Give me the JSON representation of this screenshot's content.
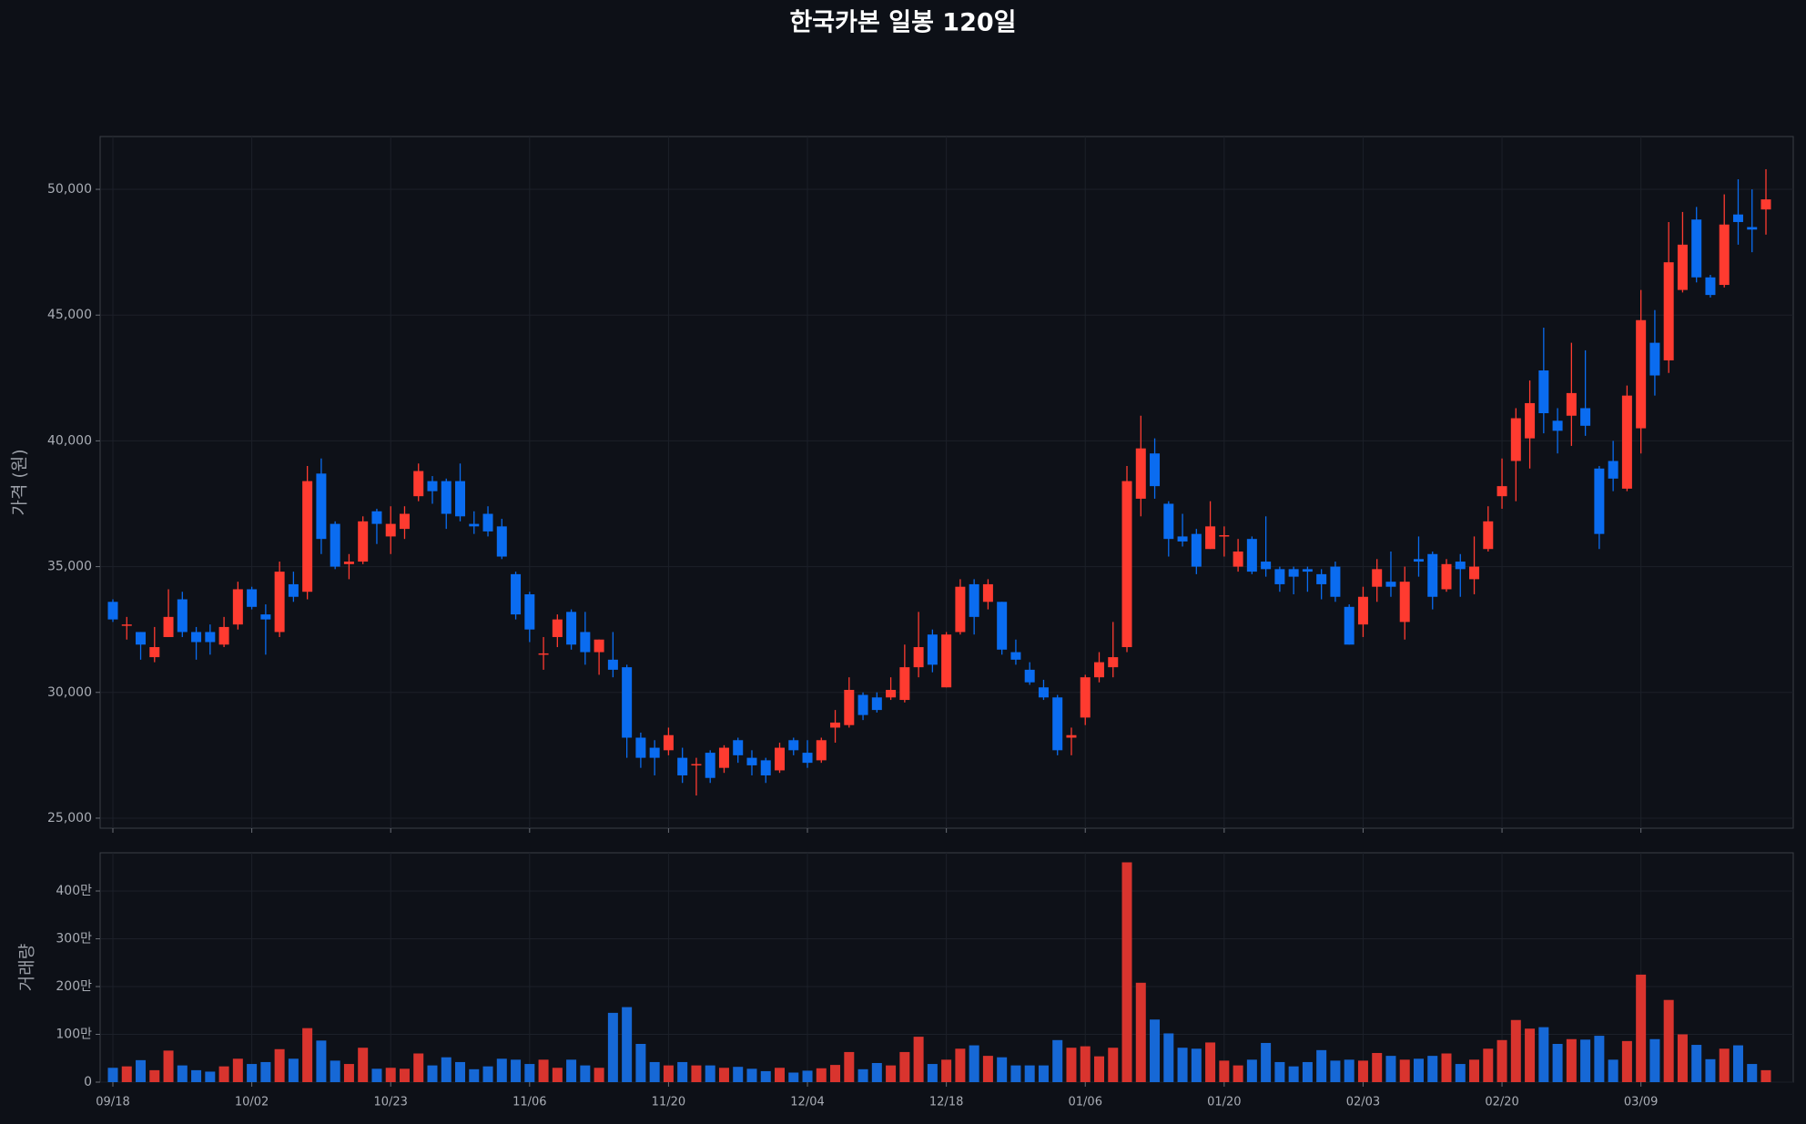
{
  "chart_data": [
    {
      "type": "candlestick",
      "title": "한국카본 일봉 120일",
      "ylabel": "가격 (원)",
      "up_color": "#ff3b30",
      "down_color": "#0a6cf0",
      "grid": true,
      "ylim": [
        24600,
        52100
      ],
      "yticks": [
        {
          "value": 25000,
          "label": "25,000"
        },
        {
          "value": 30000,
          "label": "30,000"
        },
        {
          "value": 35000,
          "label": "35,000"
        },
        {
          "value": 40000,
          "label": "40,000"
        },
        {
          "value": 45000,
          "label": "45,000"
        },
        {
          "value": 50000,
          "label": "50,000"
        }
      ],
      "open": [
        33600,
        32650,
        32400,
        31400,
        32200,
        33700,
        32400,
        32400,
        31900,
        32700,
        34100,
        33100,
        32400,
        34300,
        34000,
        38700,
        36700,
        35100,
        35200,
        37200,
        36200,
        36500,
        37800,
        38400,
        38400,
        38400,
        36700,
        37100,
        36600,
        34700,
        33900,
        31500,
        32200,
        33200,
        32400,
        31600,
        31300,
        31000,
        28200,
        27800,
        27700,
        27400,
        27100,
        27600,
        27000,
        28100,
        27400,
        27300,
        26900,
        28100,
        27600,
        27300,
        28600,
        28700,
        29900,
        29800,
        29800,
        29700,
        31000,
        32300,
        30200,
        32400,
        34300,
        33600,
        33600,
        31600,
        30900,
        30200,
        29800,
        28200,
        29000,
        30600,
        31000,
        31800,
        37700,
        39500,
        37500,
        36200,
        36300,
        35700,
        36200,
        35000,
        36100,
        35200,
        34900,
        34900,
        34900,
        34700,
        35000,
        33400,
        32700,
        34200,
        34400,
        32800,
        35300,
        35500,
        34100,
        35200,
        34500,
        35700,
        37800,
        39200,
        40100,
        42800,
        40800,
        41000,
        41300,
        38900,
        39200,
        38100,
        40500,
        43900,
        43200,
        46000,
        48800,
        46500,
        46200,
        49000,
        48500,
        49200
      ],
      "high": [
        33700,
        33000,
        32400,
        32600,
        34100,
        34000,
        32600,
        32700,
        33000,
        34400,
        34200,
        33500,
        35200,
        34800,
        39000,
        39300,
        36800,
        35500,
        37000,
        37300,
        37400,
        37400,
        39100,
        38600,
        38500,
        39100,
        37200,
        37400,
        36900,
        34800,
        34000,
        32200,
        33100,
        33300,
        33200,
        32100,
        32400,
        31100,
        28400,
        28100,
        28600,
        27800,
        27400,
        27700,
        27900,
        28200,
        27700,
        27400,
        28000,
        28200,
        28100,
        28200,
        29300,
        30600,
        30000,
        30000,
        30600,
        31900,
        33200,
        32500,
        32400,
        34500,
        34500,
        34500,
        33600,
        32100,
        31200,
        30500,
        29900,
        28600,
        30700,
        31600,
        32800,
        39000,
        41000,
        40100,
        37600,
        37100,
        36500,
        37600,
        36600,
        36100,
        36200,
        37000,
        35000,
        35000,
        35000,
        34900,
        35200,
        33500,
        34200,
        35300,
        35600,
        35000,
        36200,
        35600,
        35300,
        35500,
        36200,
        37400,
        39300,
        41300,
        42400,
        44500,
        41300,
        43900,
        43600,
        39000,
        40000,
        42200,
        46000,
        45200,
        48700,
        49100,
        49300,
        46600,
        49800,
        50400,
        50000,
        50800
      ],
      "low": [
        32800,
        32100,
        31300,
        31200,
        32200,
        32200,
        31300,
        31500,
        31800,
        32500,
        33300,
        31500,
        32200,
        33600,
        33700,
        35500,
        34900,
        34500,
        35100,
        35900,
        35500,
        36100,
        37600,
        37500,
        36500,
        36800,
        36300,
        36200,
        35300,
        32900,
        32000,
        30900,
        31800,
        31700,
        31100,
        30700,
        30600,
        27400,
        27000,
        26700,
        27500,
        26400,
        25900,
        26400,
        26800,
        27200,
        26700,
        26400,
        26800,
        27500,
        27000,
        27200,
        28000,
        28600,
        28900,
        29200,
        29700,
        29600,
        30600,
        30800,
        30200,
        32300,
        32300,
        33300,
        31500,
        31100,
        30300,
        29700,
        27500,
        27500,
        28700,
        30400,
        30600,
        31600,
        37000,
        37700,
        35400,
        35800,
        34700,
        35700,
        35400,
        34800,
        34700,
        34600,
        34000,
        33900,
        34000,
        33700,
        33600,
        31900,
        32200,
        33600,
        33800,
        32100,
        34600,
        33300,
        34000,
        33800,
        33900,
        35600,
        37300,
        37600,
        38900,
        40300,
        39500,
        39800,
        40200,
        35700,
        38000,
        38000,
        39500,
        41800,
        42700,
        45900,
        46300,
        45700,
        46100,
        47800,
        47500,
        48200
      ],
      "close": [
        32900,
        32700,
        31900,
        31800,
        33000,
        32400,
        32000,
        32000,
        32600,
        34100,
        33400,
        32900,
        34800,
        33800,
        38400,
        36100,
        35000,
        35200,
        36800,
        36700,
        36700,
        37100,
        38800,
        38000,
        37100,
        37000,
        36600,
        36400,
        35400,
        33100,
        32500,
        31550,
        32900,
        31900,
        31600,
        32100,
        30900,
        28200,
        27400,
        27400,
        28300,
        26700,
        27150,
        26600,
        27800,
        27500,
        27100,
        26700,
        27800,
        27700,
        27200,
        28100,
        28800,
        30100,
        29100,
        29300,
        30100,
        31000,
        31800,
        31100,
        32300,
        34200,
        33000,
        34300,
        31700,
        31300,
        30400,
        29800,
        27700,
        28300,
        30600,
        31200,
        31400,
        38400,
        39700,
        38200,
        36100,
        36000,
        35000,
        36600,
        36250,
        35600,
        34800,
        34900,
        34300,
        34600,
        34800,
        34300,
        33800,
        31900,
        33800,
        34900,
        34200,
        34400,
        35200,
        33800,
        35100,
        34900,
        35000,
        36800,
        38200,
        40900,
        41500,
        41100,
        40400,
        41900,
        40600,
        36300,
        38500,
        41800,
        44800,
        42600,
        47100,
        47800,
        46500,
        45800,
        48600,
        48700,
        48400,
        49600
      ]
    },
    {
      "type": "bar",
      "ylabel": "거래량",
      "up_color": "#d9342e",
      "down_color": "#1668d6",
      "grid": true,
      "ylim": [
        0,
        4800000
      ],
      "yticks": [
        0,
        {
          "value": 1000000,
          "label": "100만"
        },
        {
          "value": 2000000,
          "label": "200만"
        },
        {
          "value": 3000000,
          "label": "300만"
        },
        {
          "value": 4000000,
          "label": "400만"
        }
      ],
      "categories": [
        "09/18",
        null,
        null,
        null,
        null,
        null,
        null,
        null,
        null,
        null,
        "10/02",
        null,
        null,
        null,
        null,
        null,
        null,
        null,
        null,
        null,
        "10/23",
        null,
        null,
        null,
        null,
        null,
        null,
        null,
        null,
        null,
        "11/06",
        null,
        null,
        null,
        null,
        null,
        null,
        null,
        null,
        null,
        "11/20",
        null,
        null,
        null,
        null,
        null,
        null,
        null,
        null,
        null,
        "12/04",
        null,
        null,
        null,
        null,
        null,
        null,
        null,
        null,
        null,
        "12/18",
        null,
        null,
        null,
        null,
        null,
        null,
        null,
        null,
        null,
        "01/06",
        null,
        null,
        null,
        null,
        null,
        null,
        null,
        null,
        null,
        "01/20",
        null,
        null,
        null,
        null,
        null,
        null,
        null,
        null,
        null,
        "02/03",
        null,
        null,
        null,
        null,
        null,
        null,
        null,
        null,
        null,
        "02/20",
        null,
        null,
        null,
        null,
        null,
        null,
        null,
        null,
        null,
        "03/09",
        null,
        null,
        null,
        null,
        null,
        null,
        null,
        null,
        null
      ],
      "values": [
        300000,
        330000,
        460000,
        250000,
        660000,
        350000,
        250000,
        220000,
        330000,
        490000,
        380000,
        420000,
        690000,
        490000,
        1130000,
        870000,
        450000,
        380000,
        720000,
        280000,
        300000,
        280000,
        600000,
        350000,
        520000,
        420000,
        270000,
        330000,
        490000,
        470000,
        380000,
        470000,
        300000,
        470000,
        350000,
        300000,
        1450000,
        1570000,
        800000,
        420000,
        350000,
        420000,
        350000,
        350000,
        300000,
        320000,
        280000,
        230000,
        300000,
        200000,
        240000,
        290000,
        360000,
        630000,
        270000,
        400000,
        350000,
        630000,
        950000,
        380000,
        470000,
        700000,
        770000,
        550000,
        520000,
        350000,
        350000,
        350000,
        880000,
        720000,
        750000,
        540000,
        720000,
        4600000,
        2080000,
        1310000,
        1020000,
        720000,
        700000,
        830000,
        450000,
        350000,
        470000,
        820000,
        420000,
        330000,
        420000,
        670000,
        450000,
        470000,
        450000,
        610000,
        550000,
        470000,
        490000,
        550000,
        600000,
        380000,
        470000,
        700000,
        880000,
        1300000,
        1120000,
        1150000,
        800000,
        900000,
        890000,
        970000,
        470000,
        860000,
        2250000,
        900000,
        1720000,
        1000000,
        780000,
        480000,
        700000,
        770000,
        380000,
        250000
      ]
    }
  ]
}
